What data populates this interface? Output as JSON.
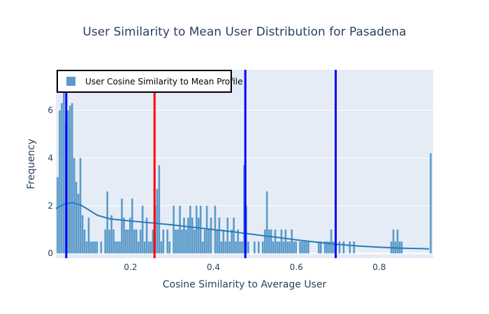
{
  "chart_data": {
    "type": "bar",
    "title": "User Similarity to Mean User Distribution for Pasadena",
    "xlabel": "Cosine Similarity to Average User",
    "ylabel": "Frequency",
    "xlim": [
      0.02,
      0.93
    ],
    "ylim": [
      -0.2,
      7.7
    ],
    "bin_width": 0.005,
    "x_ticks": [
      {
        "value": 0.2,
        "label": "0.2"
      },
      {
        "value": 0.4,
        "label": "0.4"
      },
      {
        "value": 0.6,
        "label": "0.6"
      },
      {
        "value": 0.8,
        "label": "0.8"
      }
    ],
    "y_ticks": [
      {
        "value": 0,
        "label": "0"
      },
      {
        "value": 2,
        "label": "2"
      },
      {
        "value": 4,
        "label": "4"
      },
      {
        "value": 6,
        "label": "6"
      }
    ],
    "legend": {
      "label": "User Cosine Similarity to Mean Profile",
      "position": "top-left"
    },
    "histogram": {
      "name": "User Cosine Similarity to Mean Profile",
      "color": "#5a9ac9",
      "bins": [
        [
          0.022,
          3.2
        ],
        [
          0.027,
          6.0
        ],
        [
          0.032,
          6.3
        ],
        [
          0.037,
          6.8
        ],
        [
          0.042,
          5.5
        ],
        [
          0.047,
          6.0
        ],
        [
          0.052,
          6.2
        ],
        [
          0.057,
          6.3
        ],
        [
          0.062,
          4.0
        ],
        [
          0.067,
          3.0
        ],
        [
          0.072,
          2.5
        ],
        [
          0.077,
          4.0
        ],
        [
          0.082,
          1.6
        ],
        [
          0.087,
          1.0
        ],
        [
          0.092,
          0.5
        ],
        [
          0.097,
          1.5
        ],
        [
          0.102,
          0.5
        ],
        [
          0.107,
          0.5
        ],
        [
          0.112,
          0.5
        ],
        [
          0.117,
          0.5
        ],
        [
          0.127,
          0.5
        ],
        [
          0.137,
          1.0
        ],
        [
          0.142,
          2.6
        ],
        [
          0.147,
          1.0
        ],
        [
          0.152,
          1.6
        ],
        [
          0.157,
          1.0
        ],
        [
          0.162,
          0.5
        ],
        [
          0.167,
          0.5
        ],
        [
          0.172,
          0.5
        ],
        [
          0.177,
          2.3
        ],
        [
          0.182,
          1.5
        ],
        [
          0.187,
          1.0
        ],
        [
          0.192,
          1.0
        ],
        [
          0.197,
          1.5
        ],
        [
          0.202,
          2.3
        ],
        [
          0.207,
          1.0
        ],
        [
          0.212,
          1.0
        ],
        [
          0.217,
          0.5
        ],
        [
          0.222,
          1.0
        ],
        [
          0.227,
          2.0
        ],
        [
          0.232,
          0.5
        ],
        [
          0.237,
          1.5
        ],
        [
          0.242,
          0.5
        ],
        [
          0.247,
          0.5
        ],
        [
          0.252,
          1.0
        ],
        [
          0.257,
          2.0
        ],
        [
          0.262,
          2.7
        ],
        [
          0.267,
          3.7
        ],
        [
          0.272,
          0.5
        ],
        [
          0.277,
          1.0
        ],
        [
          0.287,
          1.0
        ],
        [
          0.292,
          0.5
        ],
        [
          0.302,
          2.0
        ],
        [
          0.307,
          1.0
        ],
        [
          0.312,
          1.0
        ],
        [
          0.317,
          2.0
        ],
        [
          0.322,
          1.0
        ],
        [
          0.327,
          1.5
        ],
        [
          0.332,
          1.0
        ],
        [
          0.337,
          1.5
        ],
        [
          0.342,
          2.0
        ],
        [
          0.347,
          1.5
        ],
        [
          0.352,
          1.0
        ],
        [
          0.357,
          2.0
        ],
        [
          0.362,
          1.5
        ],
        [
          0.367,
          2.0
        ],
        [
          0.372,
          0.5
        ],
        [
          0.377,
          1.0
        ],
        [
          0.382,
          2.0
        ],
        [
          0.387,
          1.0
        ],
        [
          0.392,
          1.5
        ],
        [
          0.402,
          2.0
        ],
        [
          0.407,
          1.0
        ],
        [
          0.412,
          1.5
        ],
        [
          0.417,
          0.5
        ],
        [
          0.422,
          1.0
        ],
        [
          0.427,
          0.5
        ],
        [
          0.432,
          1.5
        ],
        [
          0.437,
          0.5
        ],
        [
          0.442,
          1.0
        ],
        [
          0.447,
          1.5
        ],
        [
          0.452,
          0.5
        ],
        [
          0.457,
          1.0
        ],
        [
          0.462,
          0.5
        ],
        [
          0.467,
          0.5
        ],
        [
          0.472,
          3.7
        ],
        [
          0.477,
          2.0
        ],
        [
          0.482,
          0.5
        ],
        [
          0.497,
          0.5
        ],
        [
          0.507,
          0.5
        ],
        [
          0.517,
          0.5
        ],
        [
          0.522,
          1.0
        ],
        [
          0.527,
          2.6
        ],
        [
          0.532,
          1.0
        ],
        [
          0.537,
          1.0
        ],
        [
          0.542,
          0.5
        ],
        [
          0.547,
          1.0
        ],
        [
          0.552,
          0.5
        ],
        [
          0.557,
          0.5
        ],
        [
          0.562,
          1.0
        ],
        [
          0.567,
          0.5
        ],
        [
          0.572,
          1.0
        ],
        [
          0.577,
          0.5
        ],
        [
          0.582,
          0.5
        ],
        [
          0.587,
          1.0
        ],
        [
          0.592,
          0.5
        ],
        [
          0.597,
          0.5
        ],
        [
          0.607,
          0.5
        ],
        [
          0.612,
          0.5
        ],
        [
          0.617,
          0.5
        ],
        [
          0.622,
          0.5
        ],
        [
          0.627,
          0.5
        ],
        [
          0.652,
          0.5
        ],
        [
          0.657,
          0.5
        ],
        [
          0.667,
          0.5
        ],
        [
          0.672,
          0.5
        ],
        [
          0.677,
          0.5
        ],
        [
          0.682,
          1.0
        ],
        [
          0.687,
          0.5
        ],
        [
          0.692,
          0.5
        ],
        [
          0.702,
          0.5
        ],
        [
          0.712,
          0.5
        ],
        [
          0.727,
          0.5
        ],
        [
          0.737,
          0.5
        ],
        [
          0.827,
          0.5
        ],
        [
          0.832,
          1.0
        ],
        [
          0.837,
          0.5
        ],
        [
          0.842,
          1.0
        ],
        [
          0.847,
          0.5
        ],
        [
          0.852,
          0.5
        ],
        [
          0.922,
          4.2
        ]
      ]
    },
    "kde": {
      "name": "density",
      "color": "#2b7bba",
      "x": [
        0.02,
        0.04,
        0.06,
        0.08,
        0.1,
        0.12,
        0.15,
        0.2,
        0.25,
        0.3,
        0.35,
        0.4,
        0.45,
        0.5,
        0.55,
        0.6,
        0.65,
        0.7,
        0.75,
        0.8,
        0.85,
        0.9,
        0.92
      ],
      "y": [
        1.88,
        2.07,
        2.13,
        2.03,
        1.82,
        1.6,
        1.45,
        1.36,
        1.28,
        1.2,
        1.1,
        1.0,
        0.9,
        0.79,
        0.68,
        0.57,
        0.47,
        0.38,
        0.31,
        0.26,
        0.22,
        0.2,
        0.19
      ]
    },
    "vertical_lines": [
      {
        "x": 0.045,
        "color": "#0000ff"
      },
      {
        "x": 0.258,
        "color": "#ff0000"
      },
      {
        "x": 0.477,
        "color": "#0000ff"
      },
      {
        "x": 0.695,
        "color": "#0000ff"
      }
    ]
  }
}
